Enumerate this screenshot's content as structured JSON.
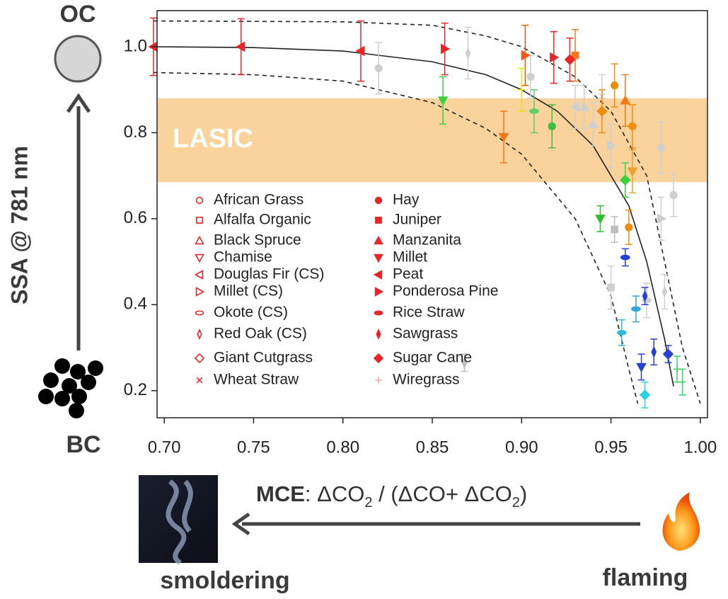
{
  "chart_data": {
    "type": "scatter",
    "ylabel": "SSA @ 781 nm",
    "top_label": "OC",
    "bottom_label": "BC",
    "left_label": "smoldering",
    "right_label": "flaming",
    "xlabel_parts": [
      {
        "text": "MCE",
        "bold": true
      },
      {
        "text": ": ΔCO"
      },
      {
        "text": "2",
        "sub": true
      },
      {
        "text": " / (ΔCO+ ΔCO"
      },
      {
        "text": "2",
        "sub": true
      },
      {
        "text": ")"
      }
    ],
    "band": {
      "label": "LASIC",
      "ylim": [
        0.685,
        0.88
      ],
      "color": "#fad39c"
    },
    "xlim": [
      0.696,
      1.004
    ],
    "ylim": [
      0.137,
      1.084
    ],
    "xticks": [
      {
        "value": 0.7,
        "label": "0.70"
      },
      {
        "value": 0.75,
        "label": "0.75"
      },
      {
        "value": 0.8,
        "label": "0.80"
      },
      {
        "value": 0.85,
        "label": "0.85"
      },
      {
        "value": 0.9,
        "label": "0.90"
      },
      {
        "value": 0.95,
        "label": "0.95"
      },
      {
        "value": 1.0,
        "label": "1.00"
      }
    ],
    "yticks": [
      0.2,
      0.4,
      0.6,
      0.8,
      {
        "value": 1.0,
        "label": "1.0"
      }
    ],
    "curves": [
      {
        "dashed": false,
        "x": [
          0.694,
          0.75,
          0.8,
          0.85,
          0.88,
          0.9,
          0.92,
          0.94,
          0.96,
          0.97,
          0.98,
          0.985
        ],
        "y": [
          1.0,
          0.998,
          0.99,
          0.965,
          0.935,
          0.9,
          0.85,
          0.77,
          0.63,
          0.5,
          0.32,
          0.21
        ]
      },
      {
        "dashed": true,
        "x": [
          0.694,
          0.8,
          0.85,
          0.88,
          0.9,
          0.93,
          0.95,
          0.97,
          0.99,
          1.0
        ],
        "y": [
          1.06,
          1.058,
          1.05,
          1.025,
          1.0,
          0.93,
          0.85,
          0.7,
          0.3,
          0.17
        ]
      },
      {
        "dashed": true,
        "x": [
          0.694,
          0.75,
          0.8,
          0.85,
          0.88,
          0.9,
          0.93,
          0.95,
          0.96,
          0.965
        ],
        "y": [
          0.94,
          0.935,
          0.92,
          0.87,
          0.81,
          0.75,
          0.6,
          0.42,
          0.25,
          0.17
        ]
      }
    ],
    "series": [
      {
        "name": "African Grass",
        "marker": "circle",
        "filled": false,
        "color": "#e8262a",
        "x": [
          0.82,
          0.905,
          0.985,
          0.978
        ],
        "y": [
          0.95,
          0.93,
          0.655,
          0.765
        ],
        "yerr": [
          0.06,
          0.05,
          0.05,
          0.06
        ],
        "colors": [
          "#cfcfcf",
          "#cfcfcf",
          "#cfcfcf",
          "#cfcfcf"
        ]
      },
      {
        "name": "Alfalfa Organic",
        "marker": "square",
        "filled": false,
        "color": "#e8262a",
        "x": [
          0.93,
          0.952
        ],
        "y": [
          0.98,
          0.575
        ],
        "yerr": [
          0.06,
          0.03
        ],
        "colors": [
          "#f07a1a",
          "#bdbdbd"
        ]
      },
      {
        "name": "Black Spruce",
        "marker": "triangle-up",
        "filled": false,
        "color": "#e8262a",
        "x": [
          0.958,
          0.94
        ],
        "y": [
          0.875,
          0.82
        ],
        "yerr": [
          0.06,
          0.05
        ],
        "colors": [
          "#f07a1a",
          "#cfcfcf"
        ]
      },
      {
        "name": "Chamise",
        "marker": "triangle-down",
        "filled": false,
        "color": "#e8262a",
        "x": [
          0.89,
          0.962
        ],
        "y": [
          0.79,
          0.71
        ],
        "yerr": [
          0.06,
          0.05
        ],
        "colors": [
          "#f07a1a",
          "#f0a030"
        ]
      },
      {
        "name": "Douglas Fir (CS)",
        "marker": "triangle-left",
        "filled": false,
        "color": "#e8262a",
        "x": [
          0.93
        ],
        "y": [
          0.86
        ],
        "yerr": [
          0.05
        ],
        "colors": [
          "#cfcfcf"
        ]
      },
      {
        "name": "Millet (CS)",
        "marker": "triangle-right",
        "filled": false,
        "color": "#e8262a",
        "x": [
          0.95,
          0.978
        ],
        "y": [
          0.77,
          0.6
        ],
        "yerr": [
          0.05,
          0.05
        ],
        "colors": [
          "#cfcfcf",
          "#cfcfcf"
        ]
      },
      {
        "name": "Okote (CS)",
        "marker": "ellipse",
        "filled": false,
        "color": "#e8262a",
        "x": [
          0.907,
          0.956,
          0.97
        ],
        "y": [
          0.85,
          0.335,
          0.41
        ],
        "yerr": [
          0.05,
          0.03,
          0.04
        ],
        "colors": [
          "#5ccf6a",
          "#2fb8d8",
          "#cfcfcf"
        ]
      },
      {
        "name": "Red Oak (CS)",
        "marker": "thin-diamond",
        "filled": false,
        "color": "#e8262a",
        "x": [
          0.87,
          0.98
        ],
        "y": [
          0.985,
          0.43
        ],
        "yerr": [
          0.06,
          0.04
        ],
        "colors": [
          "#cfcfcf",
          "#cfcfcf"
        ]
      },
      {
        "name": "Giant Cutgrass",
        "marker": "diamond",
        "filled": false,
        "color": "#e8262a",
        "x": [
          0.958,
          0.969
        ],
        "y": [
          0.69,
          0.19
        ],
        "yerr": [
          0.04,
          0.03
        ],
        "colors": [
          "#3fcf3f",
          "#2fd0e0"
        ]
      },
      {
        "name": "Wheat Straw",
        "marker": "x",
        "filled": false,
        "color": "#e8262a",
        "x": [
          0.945
        ],
        "y": [
          0.885
        ],
        "yerr": [
          0.05
        ],
        "colors": [
          "#cfcfcf"
        ]
      },
      {
        "name": "Hay",
        "marker": "circle",
        "filled": true,
        "color": "#e8262a",
        "x": [
          0.917,
          0.952,
          0.962,
          0.96
        ],
        "y": [
          0.815,
          0.91,
          0.815,
          0.58
        ],
        "yerr": [
          0.05,
          0.05,
          0.05,
          0.04
        ],
        "colors": [
          "#3dbf3d",
          "#f08c10",
          "#f08c10",
          "#f08c10"
        ]
      },
      {
        "name": "Juniper",
        "marker": "square",
        "filled": true,
        "color": "#e8262a",
        "x": [
          0.95
        ],
        "y": [
          0.44
        ],
        "yerr": [
          0.05
        ],
        "colors": [
          "#cfcfcf"
        ]
      },
      {
        "name": "Manzanita",
        "marker": "triangle-up",
        "filled": true,
        "color": "#e8262a",
        "x": [
          0.935
        ],
        "y": [
          0.86
        ],
        "yerr": [
          0.05
        ],
        "colors": [
          "#cfcfcf"
        ]
      },
      {
        "name": "Millet",
        "marker": "triangle-down",
        "filled": true,
        "color": "#e8262a",
        "x": [
          0.944,
          0.967,
          0.856
        ],
        "y": [
          0.6,
          0.255,
          0.875
        ],
        "yerr": [
          0.03,
          0.03,
          0.055
        ],
        "colors": [
          "#2dbf2d",
          "#2840d0",
          "#3fd03f"
        ]
      },
      {
        "name": "Peat",
        "marker": "triangle-left",
        "filled": true,
        "color": "#e8262a",
        "x": [
          0.694,
          0.743,
          0.81
        ],
        "y": [
          1.0,
          1.0,
          0.99
        ],
        "yerr": [
          0.067,
          0.065,
          0.07
        ],
        "colors": [
          "#e8262a",
          "#e8262a",
          "#e8262a"
        ]
      },
      {
        "name": "Ponderosa Pine",
        "marker": "triangle-right",
        "filled": true,
        "color": "#e8262a",
        "x": [
          0.857,
          0.902,
          0.918
        ],
        "y": [
          0.995,
          0.98,
          0.975
        ],
        "yerr": [
          0.06,
          0.07,
          0.06
        ],
        "colors": [
          "#e8262a",
          "#f05a10",
          "#e8262a"
        ]
      },
      {
        "name": "Rice Straw",
        "marker": "ellipse",
        "filled": true,
        "color": "#e8262a",
        "x": [
          0.958,
          0.964
        ],
        "y": [
          0.51,
          0.39
        ],
        "yerr": [
          0.02,
          0.03
        ],
        "colors": [
          "#2840d0",
          "#2fa8d8"
        ]
      },
      {
        "name": "Sawgrass",
        "marker": "thin-diamond",
        "filled": true,
        "color": "#e8262a",
        "x": [
          0.868,
          0.969,
          0.974
        ],
        "y": [
          0.265,
          0.42,
          0.29
        ],
        "yerr": [
          0.02,
          0.02,
          0.03
        ],
        "colors": [
          "#bdbdbd",
          "#2840d0",
          "#2840d0"
        ]
      },
      {
        "name": "Sugar Cane",
        "marker": "diamond",
        "filled": true,
        "color": "#e8262a",
        "x": [
          0.927,
          0.945,
          0.982
        ],
        "y": [
          0.97,
          0.85,
          0.285
        ],
        "yerr": [
          0.05,
          0.05,
          0.02
        ],
        "colors": [
          "#e8262a",
          "#f08c10",
          "#2840d0"
        ]
      },
      {
        "name": "Wiregrass",
        "marker": "plus",
        "filled": true,
        "color": "#f4a6a6",
        "x": [
          0.9,
          0.987,
          0.99
        ],
        "y": [
          0.9,
          0.25,
          0.22
        ],
        "yerr": [
          0.05,
          0.03,
          0.03
        ],
        "colors": [
          "#e6e600",
          "#3fd06a",
          "#3fd06a"
        ]
      }
    ]
  }
}
